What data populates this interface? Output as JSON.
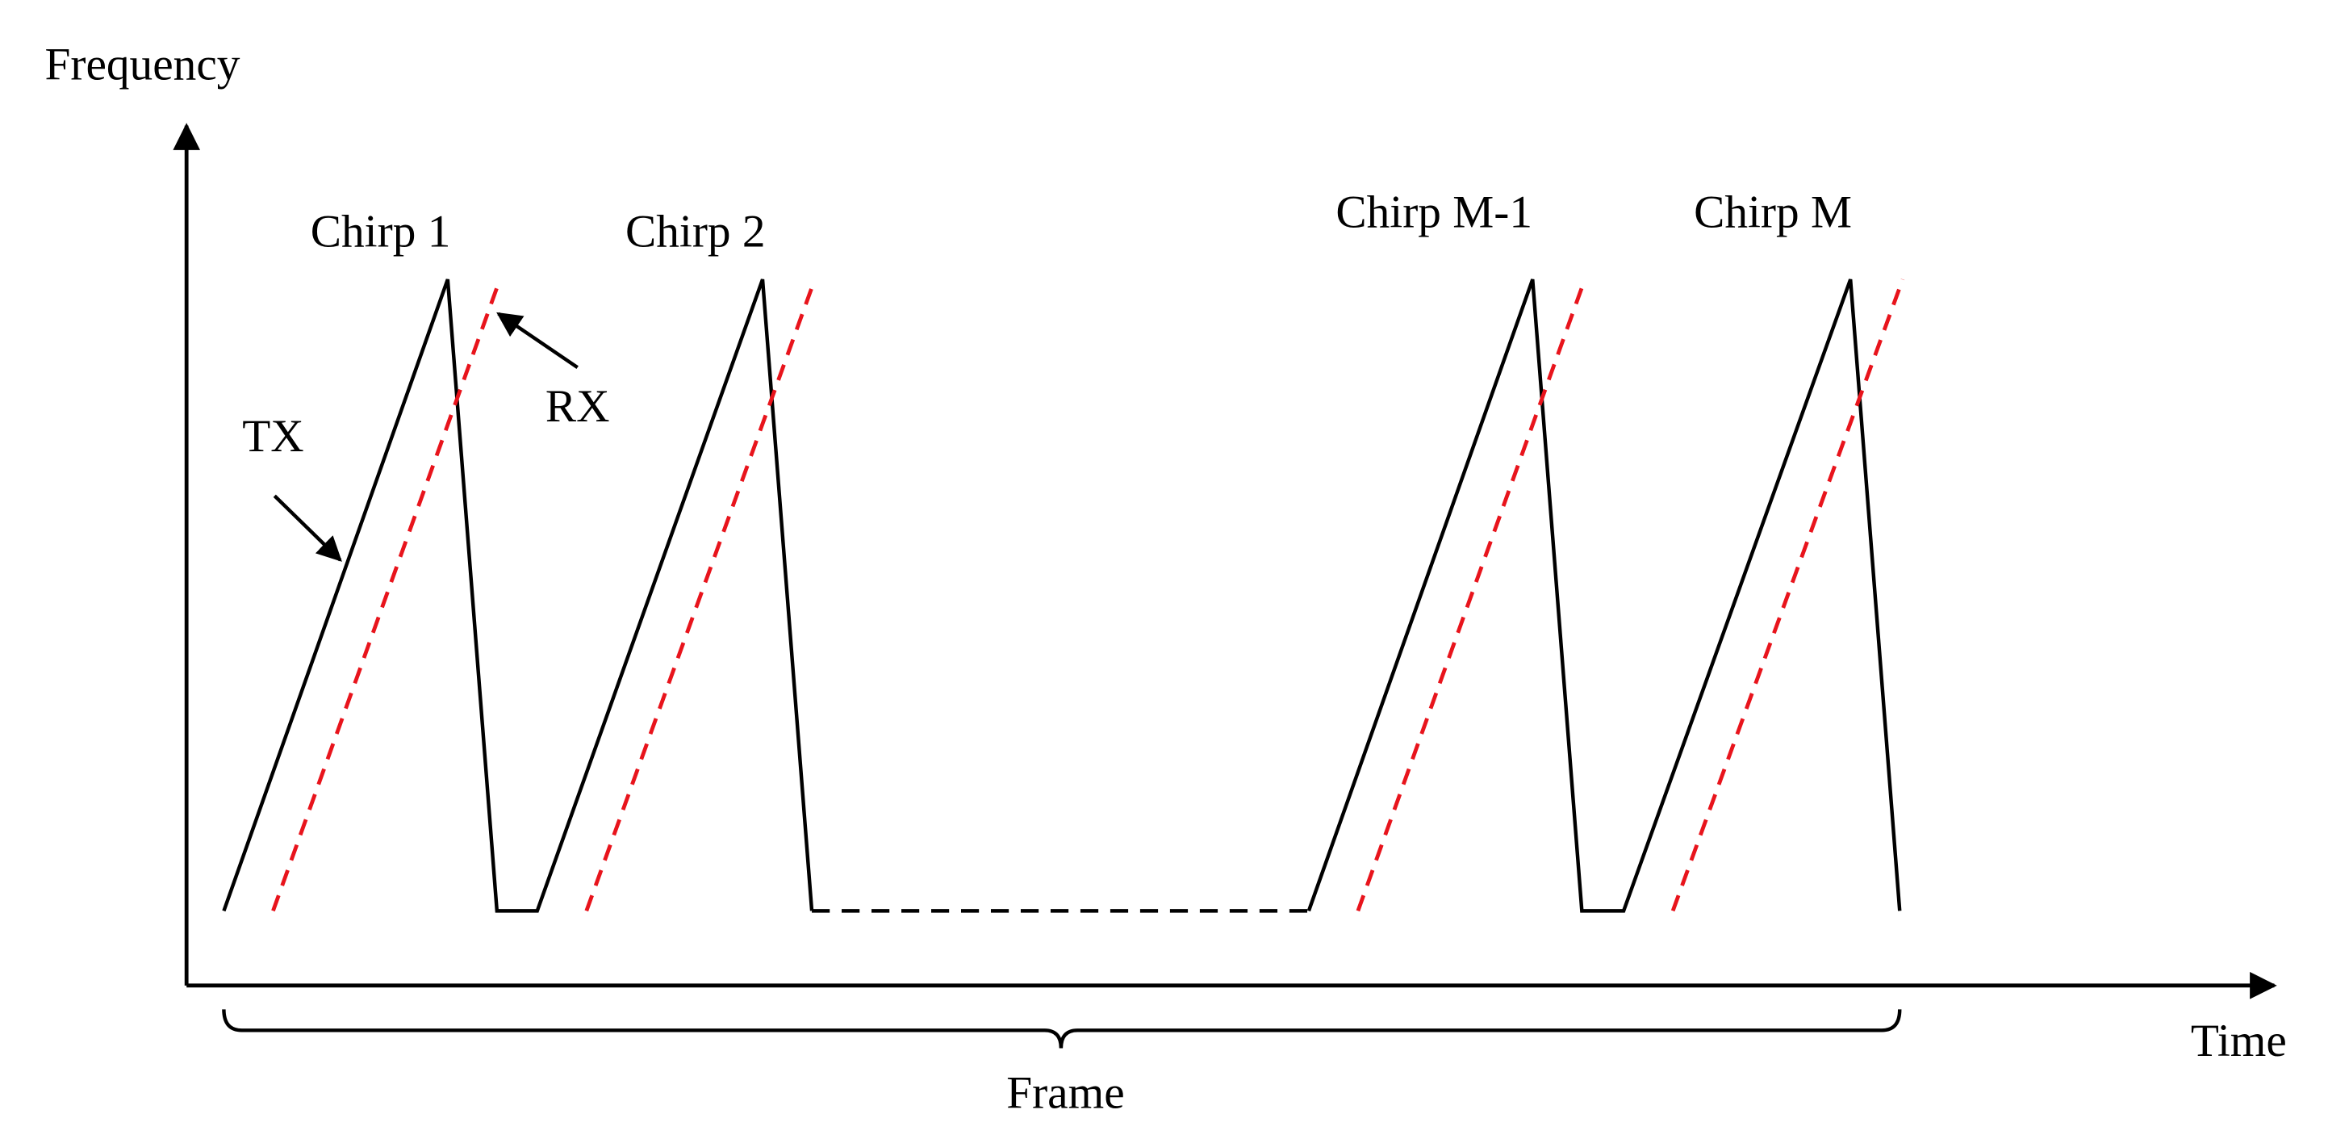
{
  "axes": {
    "y_label": "Frequency",
    "x_label": "Time"
  },
  "chirps": [
    {
      "label": "Chirp 1"
    },
    {
      "label": "Chirp 2"
    },
    {
      "label": "Chirp M-1"
    },
    {
      "label": "Chirp M"
    }
  ],
  "signals": {
    "tx": "TX",
    "rx": "RX"
  },
  "frame": {
    "label": "Frame"
  }
}
